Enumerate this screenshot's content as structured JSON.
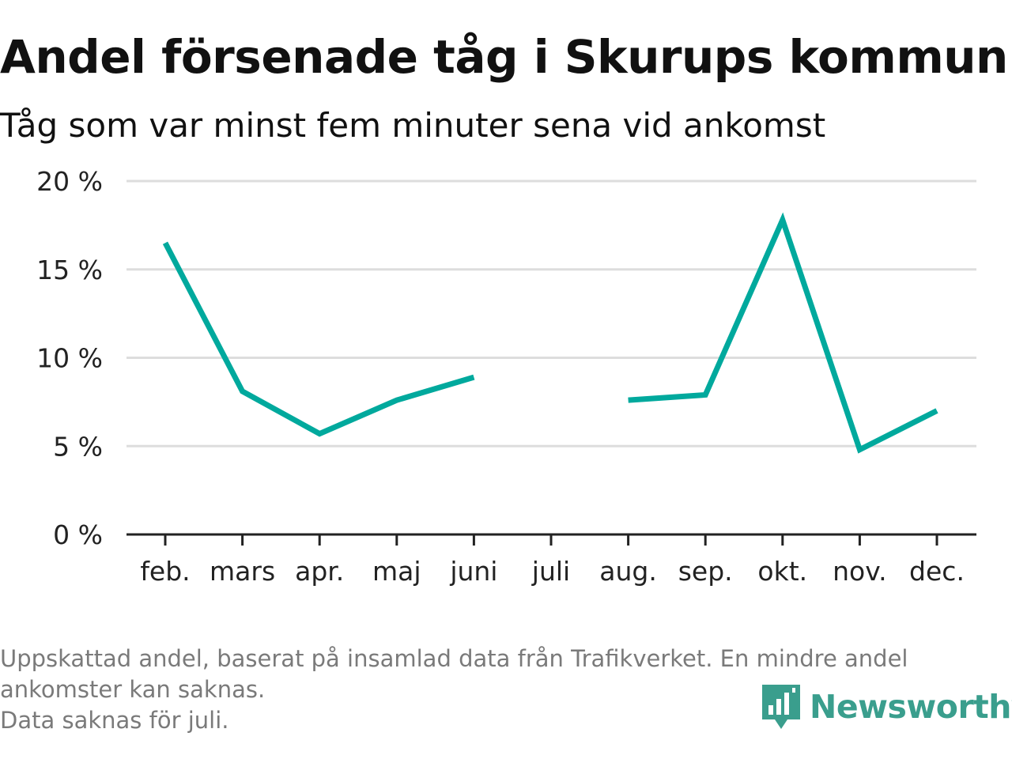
{
  "title": "Andel försenade tåg i Skurups kommun",
  "subtitle": "Tåg som var minst fem minuter sena vid ankomst",
  "footer": {
    "line1": "Uppskattad andel, baserat på insamlad data från Trafikverket. En mindre andel",
    "line2": "ankomster kan saknas.",
    "line3": "Data saknas för juli."
  },
  "brand": {
    "name": "Newsworthy",
    "color": "#3a9e8d",
    "icon": "newsworthy-logo-icon"
  },
  "chart_data": {
    "type": "line",
    "title": "Andel försenade tåg i Skurups kommun",
    "subtitle": "Tåg som var minst fem minuter sena vid ankomst",
    "categories": [
      "feb.",
      "mars",
      "apr.",
      "maj",
      "juni",
      "juli",
      "aug.",
      "sep.",
      "okt.",
      "nov.",
      "dec."
    ],
    "series": [
      {
        "values": [
          16.5,
          8.1,
          5.7,
          7.6,
          8.9,
          null,
          7.6,
          7.9,
          17.8,
          4.8,
          7.0
        ],
        "color": "#00a99d"
      }
    ],
    "yticks": [
      0,
      5,
      10,
      15,
      20
    ],
    "ytick_labels": [
      "0 %",
      "5 %",
      "10 %",
      "15 %",
      "20 %"
    ],
    "ylim": [
      0,
      20
    ],
    "grid": true,
    "legend": "none"
  }
}
